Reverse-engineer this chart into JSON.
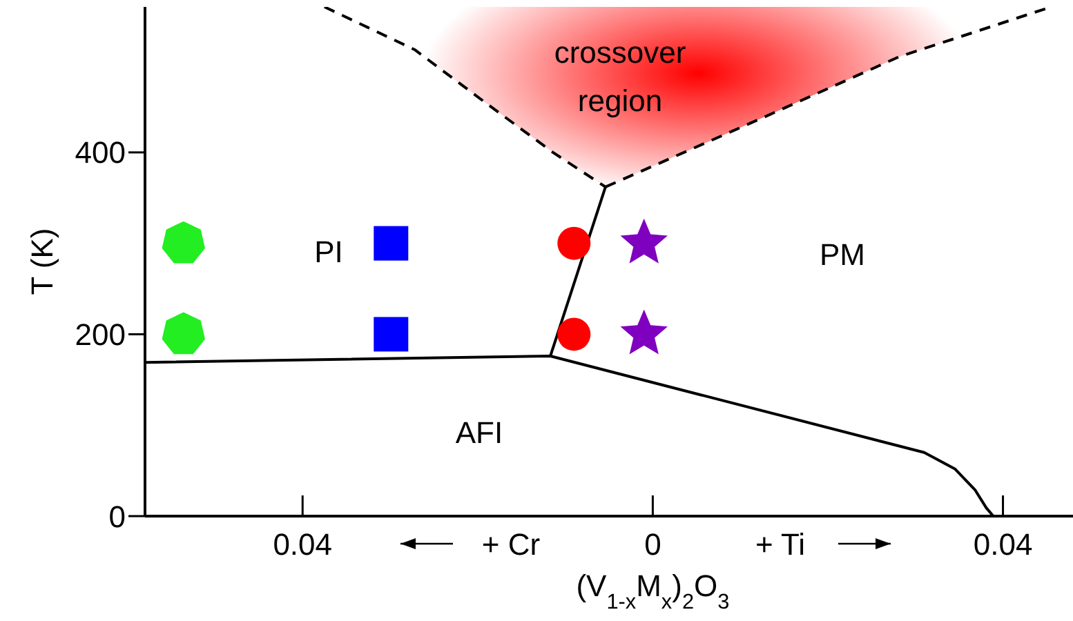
{
  "chart_data": {
    "type": "line",
    "xlabel": "(V$_{1-x}$M$_{x}$)$_{2}$O$_{3}$",
    "ylabel": "T (K)",
    "xlim": [
      -0.058,
      0.048
    ],
    "xticks": [
      {
        "value": -0.04,
        "label": "0.04"
      },
      0,
      0.04
    ],
    "ylim": [
      0,
      560
    ],
    "yticks": [
      0,
      200,
      400
    ],
    "grid": false,
    "line_style": "solid",
    "series": [
      {
        "color": "#000000",
        "x": [
          -0.058,
          -0.0117,
          0.031,
          0.0345,
          0.0368,
          0.0381,
          0.0389
        ],
        "values": [
          169,
          176,
          70,
          52,
          29,
          9,
          0
        ]
      },
      {
        "color": "#000000",
        "x": [
          -0.0117,
          -0.0054
        ],
        "values": [
          176,
          362
        ]
      },
      {
        "color": "#000000",
        "line_style": "dashed",
        "x": [
          -0.0375,
          -0.0272,
          -0.0193,
          -0.0114,
          -0.0054
        ],
        "values": [
          560,
          513,
          456,
          400,
          362
        ]
      },
      {
        "color": "#000000",
        "line_style": "dashed",
        "x": [
          -0.0054,
          0.0123,
          0.0281,
          0.0455
        ],
        "values": [
          362,
          437,
          505,
          560
        ]
      },
      {
        "type": "scatter",
        "color": "#22ee22",
        "x": [
          -0.0536,
          -0.0536
        ],
        "values": [
          300,
          200
        ]
      },
      {
        "type": "scatter",
        "marker": "square",
        "color": "#0000ff",
        "x": [
          -0.0299,
          -0.0299
        ],
        "values": [
          300,
          200
        ]
      },
      {
        "type": "scatter",
        "marker": "circle",
        "color": "#ff0000",
        "x": [
          -0.009,
          -0.009
        ],
        "values": [
          300,
          200
        ]
      },
      {
        "type": "scatter",
        "marker": "star",
        "color": "#8000c0",
        "x": [
          -0.001,
          -0.001
        ],
        "values": [
          300,
          200
        ]
      }
    ],
    "annotations": [
      "crossover region",
      "PI",
      "PM",
      "AFI",
      "+ Cr",
      "+ Ti"
    ]
  }
}
